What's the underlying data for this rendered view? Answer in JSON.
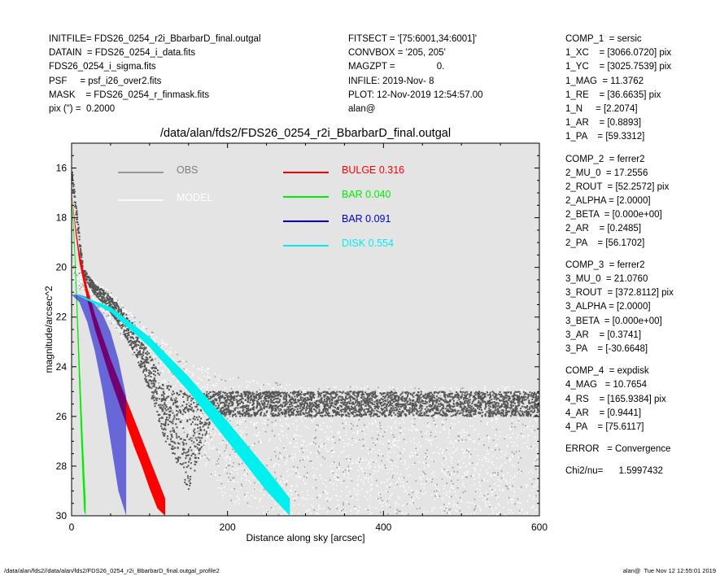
{
  "header_left": [
    "INITFILE= FDS26_0254_r2i_BbarbarD_final.outgal",
    "DATAIN  = FDS26_0254_i_data.fits",
    "FDS26_0254_i_sigma.fits",
    "PSF     = psf_i26_over2.fits",
    "MASK    = FDS26_0254_r_finmask.fits",
    "pix (\") =  0.2000"
  ],
  "header_mid": [
    "FITSECT = '[75:6001,34:6001]'",
    "CONVBOX = '205, 205'",
    "MAGZPT =                0.",
    "INFILE: 2019-Nov- 8",
    "PLOT: 12-Nov-2019 12:54:57.00",
    "alan@"
  ],
  "components": [
    [
      "COMP_1  = sersic",
      "1_XC    = [3066.0720] pix",
      "1_YC    = [3025.7539] pix",
      "1_MAG  = 11.3762",
      "1_RE    = [36.6635] pix",
      "1_N     = [2.2074]",
      "1_AR    = [0.8893]",
      "1_PA    = [59.3312]"
    ],
    [
      "COMP_2  = ferrer2",
      "2_MU_0  = 17.2556",
      "2_ROUT  = [52.2572] pix",
      "2_ALPHA = [2.0000]",
      "2_BETA  = [0.000e+00]",
      "2_AR    = [0.2485]",
      "2_PA    = [56.1702]"
    ],
    [
      "COMP_3  = ferrer2",
      "3_MU_0  = 21.0760",
      "3_ROUT  = [372.8112] pix",
      "3_ALPHA = [2.0000]",
      "3_BETA  = [0.000e+00]",
      "3_AR    = [0.3741]",
      "3_PA    = [-30.6648]"
    ],
    [
      "COMP_4  = expdisk",
      "4_MAG   = 10.7654",
      "4_RS    = [165.9384] pix",
      "4_AR    = [0.9441]",
      "4_PA    = [75.6117]"
    ],
    [
      "ERROR   = Convergence"
    ],
    [
      "Chi2/nu=      1.5997432"
    ]
  ],
  "footer_left": "/data/alan/fds2//data/alan/fds2/FDS26_0254_r2i_BbarbarD_final.outgal_profile2",
  "footer_right": "alan@  Tue Nov 12 12:55:01 2019",
  "chart_data": {
    "type": "scatter",
    "title": "/data/alan/fds2/FDS26_0254_r2i_BbarbarD_final.outgal",
    "xlabel": "Distance along sky [arcsec]",
    "ylabel": "magnitude/arcsec^2",
    "xlim": [
      0,
      600
    ],
    "ylim": [
      30,
      15
    ],
    "y_inverted": true,
    "xticks": [
      0,
      200,
      400,
      600
    ],
    "yticks": [
      16,
      18,
      20,
      22,
      24,
      26,
      28,
      30
    ],
    "background": "#e4e4e4",
    "legend_placement": "top",
    "legend": [
      {
        "label": "OBS",
        "value": "",
        "color": "#7f7f7f"
      },
      {
        "label": "MODEL",
        "value": "",
        "color": "#ffffff"
      },
      {
        "label": "BULGE",
        "value": "0.316",
        "color": "#ff0000"
      },
      {
        "label": "BAR",
        "value": "0.040",
        "color": "#00ee00"
      },
      {
        "label": "BAR",
        "value": "0.091",
        "color": "#0000cc"
      },
      {
        "label": "DISK",
        "value": "0.554",
        "color": "#00f0f0"
      }
    ],
    "series": [
      {
        "name": "BULGE",
        "color": "#ff0000",
        "x": [
          0,
          5,
          10,
          20,
          30,
          40,
          50,
          60,
          70,
          80,
          90,
          100,
          110,
          120
        ],
        "y_upper": [
          17.0,
          18.3,
          19.4,
          20.8,
          21.9,
          22.8,
          23.7,
          24.5,
          25.3,
          26.1,
          26.9,
          27.7,
          28.5,
          29.3
        ],
        "y_lower": [
          17.0,
          18.6,
          19.8,
          21.3,
          22.5,
          23.5,
          24.5,
          25.4,
          26.3,
          27.2,
          28.0,
          28.9,
          29.7,
          30.0
        ]
      },
      {
        "name": "BAR",
        "color": "#00ee00",
        "x": [
          0,
          2,
          4,
          6,
          8,
          10,
          12,
          14,
          16,
          18
        ],
        "y_upper": [
          17.3,
          17.9,
          19.0,
          20.5,
          22.0,
          23.6,
          25.1,
          26.6,
          28.0,
          29.4
        ],
        "y_lower": [
          17.4,
          18.3,
          19.7,
          21.4,
          23.2,
          25.0,
          26.8,
          28.4,
          29.8,
          30.0
        ]
      },
      {
        "name": "BAR",
        "color": "#0000cc",
        "x": [
          0,
          10,
          20,
          30,
          40,
          50,
          60,
          70
        ],
        "y_upper": [
          21.1,
          21.1,
          21.2,
          21.5,
          21.9,
          22.6,
          23.7,
          25.2
        ],
        "y_lower": [
          21.1,
          21.4,
          22.2,
          23.4,
          25.0,
          27.0,
          29.0,
          30.0
        ]
      },
      {
        "name": "DISK",
        "color": "#00f0f0",
        "x": [
          0,
          50,
          100,
          150,
          200,
          250,
          280
        ],
        "y_upper": [
          21.0,
          21.6,
          22.8,
          24.4,
          26.2,
          28.1,
          29.3
        ],
        "y_lower": [
          21.0,
          21.8,
          23.2,
          25.0,
          27.0,
          29.0,
          30.0
        ]
      }
    ],
    "obs_dense_envelope": {
      "x": [
        0,
        15,
        30,
        45,
        60,
        80,
        100,
        120,
        150,
        180,
        220,
        260,
        300,
        350,
        400,
        450,
        500,
        550,
        600
      ],
      "y_min": [
        15.8,
        20.0,
        20.7,
        21.0,
        21.5,
        22.3,
        23.4,
        24.7,
        25.0,
        25.0,
        25.0,
        25.0,
        25.0,
        25.0,
        25.0,
        25.0,
        25.0,
        25.0,
        25.0
      ],
      "y_max": [
        16.5,
        20.4,
        21.1,
        21.6,
        22.3,
        23.4,
        25.0,
        27.0,
        29.0,
        26.0,
        26.0,
        26.0,
        26.0,
        26.0,
        26.0,
        26.0,
        26.0,
        26.0,
        26.0
      ]
    },
    "obs_sparse_envelope": {
      "x": [
        0,
        50,
        100,
        150,
        200,
        250,
        300,
        400,
        500,
        600
      ],
      "y_min": [
        19.8,
        21.0,
        22.5,
        23.8,
        24.3,
        24.6,
        24.8,
        24.8,
        24.8,
        24.8
      ],
      "y_max": [
        20.5,
        22.2,
        24.5,
        27.0,
        29.5,
        30.0,
        30.0,
        30.0,
        30.0,
        30.0
      ]
    }
  }
}
